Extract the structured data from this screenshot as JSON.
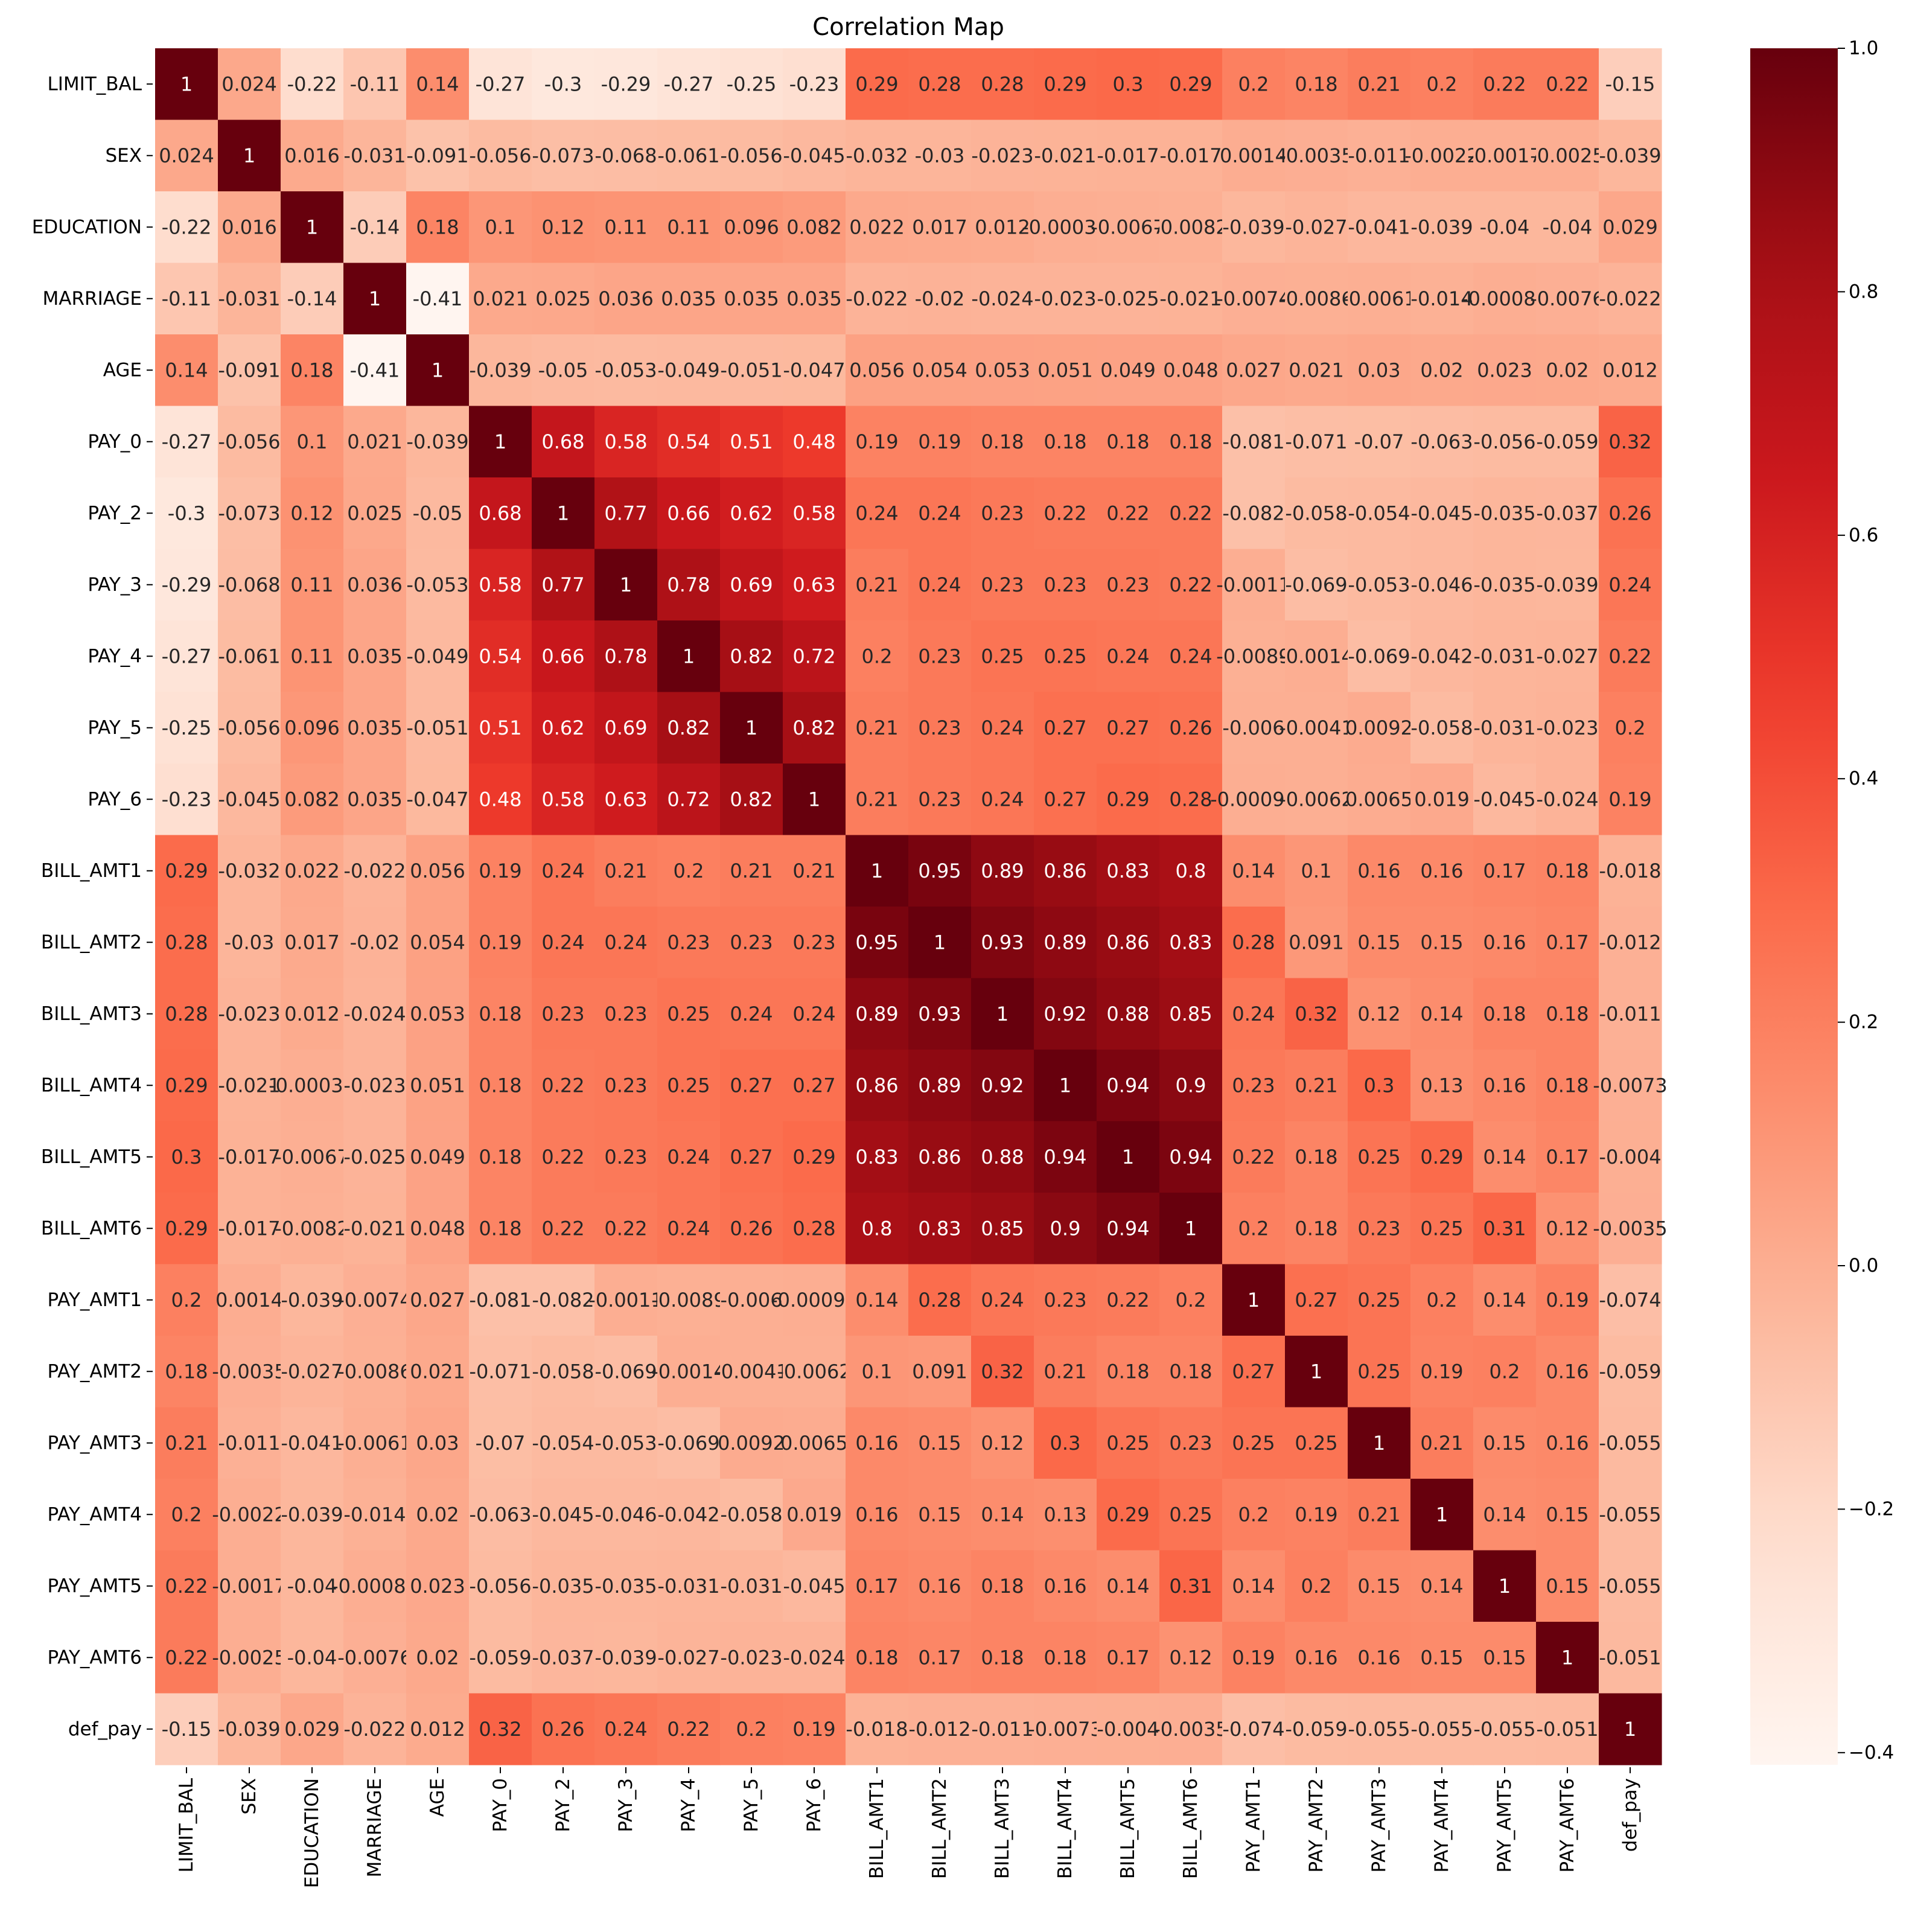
{
  "chart_data": {
    "type": "heatmap",
    "title": "Correlation Map",
    "colormap": "Reds",
    "vmin": -0.41,
    "vmax": 1.0,
    "labels": [
      "LIMIT_BAL",
      "SEX",
      "EDUCATION",
      "MARRIAGE",
      "AGE",
      "PAY_0",
      "PAY_2",
      "PAY_3",
      "PAY_4",
      "PAY_5",
      "PAY_6",
      "BILL_AMT1",
      "BILL_AMT2",
      "BILL_AMT3",
      "BILL_AMT4",
      "BILL_AMT5",
      "BILL_AMT6",
      "PAY_AMT1",
      "PAY_AMT2",
      "PAY_AMT3",
      "PAY_AMT4",
      "PAY_AMT5",
      "PAY_AMT6",
      "def_pay"
    ],
    "annotations": [
      [
        "1",
        "0.024",
        "-0.22",
        "-0.11",
        "0.14",
        "-0.27",
        "-0.3",
        "-0.29",
        "-0.27",
        "-0.25",
        "-0.23",
        "0.29",
        "0.28",
        "0.28",
        "0.29",
        "0.3",
        "0.29",
        "0.2",
        "0.18",
        "0.21",
        "0.2",
        "0.22",
        "0.22",
        "-0.15"
      ],
      [
        "0.024",
        "1",
        "0.016",
        "-0.031",
        "-0.091",
        "-0.056",
        "-0.073",
        "-0.068",
        "-0.061",
        "-0.056",
        "-0.045",
        "-0.032",
        "-0.03",
        "-0.023",
        "-0.021",
        "-0.017",
        "-0.017",
        "0.0014",
        "-0.0035",
        "-0.011",
        "-0.0022",
        "-0.0017",
        "-0.0025",
        "-0.039"
      ],
      [
        "-0.22",
        "0.016",
        "1",
        "-0.14",
        "0.18",
        "0.1",
        "0.12",
        "0.11",
        "0.11",
        "0.096",
        "0.082",
        "0.022",
        "0.017",
        "0.012",
        "-0.00039",
        "-0.0067",
        "-0.0082",
        "-0.039",
        "-0.027",
        "-0.041",
        "-0.039",
        "-0.04",
        "-0.04",
        "0.029"
      ],
      [
        "-0.11",
        "-0.031",
        "-0.14",
        "1",
        "-0.41",
        "0.021",
        "0.025",
        "0.036",
        "0.035",
        "0.035",
        "0.035",
        "-0.022",
        "-0.02",
        "-0.024",
        "-0.023",
        "-0.025",
        "-0.021",
        "-0.0074",
        "-0.0086",
        "-0.0061",
        "-0.014",
        "-0.00089",
        "-0.0076",
        "-0.022"
      ],
      [
        "0.14",
        "-0.091",
        "0.18",
        "-0.41",
        "1",
        "-0.039",
        "-0.05",
        "-0.053",
        "-0.049",
        "-0.051",
        "-0.047",
        "0.056",
        "0.054",
        "0.053",
        "0.051",
        "0.049",
        "0.048",
        "0.027",
        "0.021",
        "0.03",
        "0.02",
        "0.023",
        "0.02",
        "0.012"
      ],
      [
        "-0.27",
        "-0.056",
        "0.1",
        "0.021",
        "-0.039",
        "1",
        "0.68",
        "0.58",
        "0.54",
        "0.51",
        "0.48",
        "0.19",
        "0.19",
        "0.18",
        "0.18",
        "0.18",
        "0.18",
        "-0.081",
        "-0.071",
        "-0.07",
        "-0.063",
        "-0.056",
        "-0.059",
        "0.32"
      ],
      [
        "-0.3",
        "-0.073",
        "0.12",
        "0.025",
        "-0.05",
        "0.68",
        "1",
        "0.77",
        "0.66",
        "0.62",
        "0.58",
        "0.24",
        "0.24",
        "0.23",
        "0.22",
        "0.22",
        "0.22",
        "-0.082",
        "-0.058",
        "-0.054",
        "-0.045",
        "-0.035",
        "-0.037",
        "0.26"
      ],
      [
        "-0.29",
        "-0.068",
        "0.11",
        "0.036",
        "-0.053",
        "0.58",
        "0.77",
        "1",
        "0.78",
        "0.69",
        "0.63",
        "0.21",
        "0.24",
        "0.23",
        "0.23",
        "0.23",
        "0.22",
        "-0.0011",
        "-0.069",
        "-0.053",
        "-0.046",
        "-0.035",
        "-0.039",
        "0.24"
      ],
      [
        "-0.27",
        "-0.061",
        "0.11",
        "0.035",
        "-0.049",
        "0.54",
        "0.66",
        "0.78",
        "1",
        "0.82",
        "0.72",
        "0.2",
        "0.23",
        "0.25",
        "0.25",
        "0.24",
        "0.24",
        "-0.0089",
        "-0.0014",
        "-0.069",
        "-0.042",
        "-0.031",
        "-0.027",
        "0.22"
      ],
      [
        "-0.25",
        "-0.056",
        "0.096",
        "0.035",
        "-0.051",
        "0.51",
        "0.62",
        "0.69",
        "0.82",
        "1",
        "0.82",
        "0.21",
        "0.23",
        "0.24",
        "0.27",
        "0.27",
        "0.26",
        "-0.006",
        "-0.0041",
        "0.0092",
        "-0.058",
        "-0.031",
        "-0.023",
        "0.2"
      ],
      [
        "-0.23",
        "-0.045",
        "0.082",
        "0.035",
        "-0.047",
        "0.48",
        "0.58",
        "0.63",
        "0.72",
        "0.82",
        "1",
        "0.21",
        "0.23",
        "0.24",
        "0.27",
        "0.29",
        "0.28",
        "-0.00094",
        "-0.0062",
        "0.0065",
        "0.019",
        "-0.045",
        "-0.024",
        "0.19"
      ],
      [
        "0.29",
        "-0.032",
        "0.022",
        "-0.022",
        "0.056",
        "0.19",
        "0.24",
        "0.21",
        "0.2",
        "0.21",
        "0.21",
        "1",
        "0.95",
        "0.89",
        "0.86",
        "0.83",
        "0.8",
        "0.14",
        "0.1",
        "0.16",
        "0.16",
        "0.17",
        "0.18",
        "-0.018"
      ],
      [
        "0.28",
        "-0.03",
        "0.017",
        "-0.02",
        "0.054",
        "0.19",
        "0.24",
        "0.24",
        "0.23",
        "0.23",
        "0.23",
        "0.95",
        "1",
        "0.93",
        "0.89",
        "0.86",
        "0.83",
        "0.28",
        "0.091",
        "0.15",
        "0.15",
        "0.16",
        "0.17",
        "-0.012"
      ],
      [
        "0.28",
        "-0.023",
        "0.012",
        "-0.024",
        "0.053",
        "0.18",
        "0.23",
        "0.23",
        "0.25",
        "0.24",
        "0.24",
        "0.89",
        "0.93",
        "1",
        "0.92",
        "0.88",
        "0.85",
        "0.24",
        "0.32",
        "0.12",
        "0.14",
        "0.18",
        "0.18",
        "-0.011"
      ],
      [
        "0.29",
        "-0.021",
        "-0.00039",
        "-0.023",
        "0.051",
        "0.18",
        "0.22",
        "0.23",
        "0.25",
        "0.27",
        "0.27",
        "0.86",
        "0.89",
        "0.92",
        "1",
        "0.94",
        "0.9",
        "0.23",
        "0.21",
        "0.3",
        "0.13",
        "0.16",
        "0.18",
        "-0.0073"
      ],
      [
        "0.3",
        "-0.017",
        "-0.0067",
        "-0.025",
        "0.049",
        "0.18",
        "0.22",
        "0.23",
        "0.24",
        "0.27",
        "0.29",
        "0.83",
        "0.86",
        "0.88",
        "0.94",
        "1",
        "0.94",
        "0.22",
        "0.18",
        "0.25",
        "0.29",
        "0.14",
        "0.17",
        "-0.004"
      ],
      [
        "0.29",
        "-0.017",
        "-0.0082",
        "-0.021",
        "0.048",
        "0.18",
        "0.22",
        "0.22",
        "0.24",
        "0.26",
        "0.28",
        "0.8",
        "0.83",
        "0.85",
        "0.9",
        "0.94",
        "1",
        "0.2",
        "0.18",
        "0.23",
        "0.25",
        "0.31",
        "0.12",
        "-0.0035"
      ],
      [
        "0.2",
        "0.0014",
        "-0.039",
        "-0.0074",
        "0.027",
        "-0.081",
        "-0.082",
        "-0.0011",
        "-0.0089",
        "-0.006",
        "-0.00094",
        "0.14",
        "0.28",
        "0.24",
        "0.23",
        "0.22",
        "0.2",
        "1",
        "0.27",
        "0.25",
        "0.2",
        "0.14",
        "0.19",
        "-0.074"
      ],
      [
        "0.18",
        "-0.0035",
        "-0.027",
        "-0.0086",
        "0.021",
        "-0.071",
        "-0.058",
        "-0.069",
        "-0.0014",
        "-0.0041",
        "-0.0062",
        "0.1",
        "0.091",
        "0.32",
        "0.21",
        "0.18",
        "0.18",
        "0.27",
        "1",
        "0.25",
        "0.19",
        "0.2",
        "0.16",
        "-0.059"
      ],
      [
        "0.21",
        "-0.011",
        "-0.041",
        "-0.0061",
        "0.03",
        "-0.07",
        "-0.054",
        "-0.053",
        "-0.069",
        "0.0092",
        "0.0065",
        "0.16",
        "0.15",
        "0.12",
        "0.3",
        "0.25",
        "0.23",
        "0.25",
        "0.25",
        "1",
        "0.21",
        "0.15",
        "0.16",
        "-0.055"
      ],
      [
        "0.2",
        "-0.0022",
        "-0.039",
        "-0.014",
        "0.02",
        "-0.063",
        "-0.045",
        "-0.046",
        "-0.042",
        "-0.058",
        "0.019",
        "0.16",
        "0.15",
        "0.14",
        "0.13",
        "0.29",
        "0.25",
        "0.2",
        "0.19",
        "0.21",
        "1",
        "0.14",
        "0.15",
        "-0.055"
      ],
      [
        "0.22",
        "-0.0017",
        "-0.04",
        "-0.00089",
        "0.023",
        "-0.056",
        "-0.035",
        "-0.035",
        "-0.031",
        "-0.031",
        "-0.045",
        "0.17",
        "0.16",
        "0.18",
        "0.16",
        "0.14",
        "0.31",
        "0.14",
        "0.2",
        "0.15",
        "0.14",
        "1",
        "0.15",
        "-0.055"
      ],
      [
        "0.22",
        "-0.0025",
        "-0.04",
        "-0.0076",
        "0.02",
        "-0.059",
        "-0.037",
        "-0.039",
        "-0.027",
        "-0.023",
        "-0.024",
        "0.18",
        "0.17",
        "0.18",
        "0.18",
        "0.17",
        "0.12",
        "0.19",
        "0.16",
        "0.16",
        "0.15",
        "0.15",
        "1",
        "-0.051"
      ],
      [
        "-0.15",
        "-0.039",
        "0.029",
        "-0.022",
        "0.012",
        "0.32",
        "0.26",
        "0.24",
        "0.22",
        "0.2",
        "0.19",
        "-0.018",
        "-0.012",
        "-0.011",
        "-0.0073",
        "-0.004",
        "-0.0035",
        "-0.074",
        "-0.059",
        "-0.055",
        "-0.055",
        "-0.055",
        "-0.051",
        "1"
      ]
    ],
    "colorbar_ticks": [
      "1.0",
      "0.8",
      "0.6",
      "0.4",
      "0.2",
      "0.0",
      "−0.2",
      "−0.4"
    ],
    "colorbar_tick_values": [
      1.0,
      0.8,
      0.6,
      0.4,
      0.2,
      0.0,
      -0.2,
      -0.4
    ]
  }
}
